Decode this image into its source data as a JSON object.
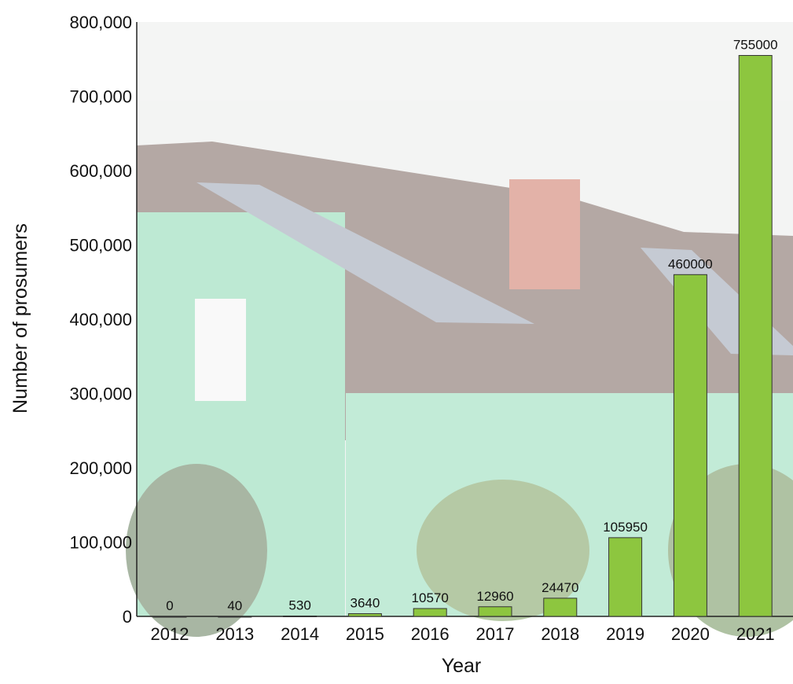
{
  "chart_data": {
    "type": "bar",
    "x_label": "Year",
    "y_label": "Number of prosumers",
    "categories": [
      "2012",
      "2013",
      "2014",
      "2015",
      "2016",
      "2017",
      "2018",
      "2019",
      "2020",
      "2021"
    ],
    "values": [
      0,
      40,
      530,
      3640,
      10570,
      12960,
      24470,
      105950,
      460000,
      755000
    ],
    "color": "#8dc63f",
    "ylim": [
      0,
      800000
    ],
    "yticks": [
      0,
      {
        "value": 100000,
        "label": "100,000"
      },
      {
        "value": 200000,
        "label": "200,000"
      },
      {
        "value": 300000,
        "label": "300,000"
      },
      {
        "value": 400000,
        "label": "400,000"
      },
      {
        "value": 500000,
        "label": "500,000"
      },
      {
        "value": 600000,
        "label": "600,000"
      },
      {
        "value": 700000,
        "label": "700,000"
      },
      {
        "value": 800000,
        "label": "800,000"
      }
    ],
    "grid": false
  }
}
